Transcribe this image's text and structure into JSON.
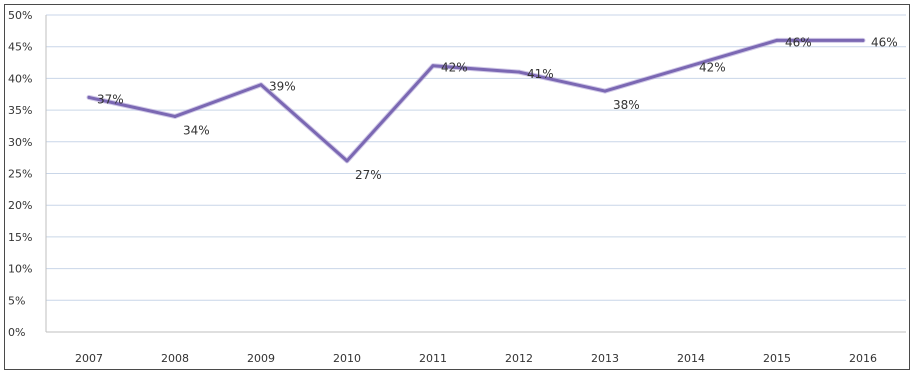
{
  "chart_data": {
    "type": "line",
    "categories": [
      "2007",
      "2008",
      "2009",
      "2010",
      "2011",
      "2012",
      "2013",
      "2014",
      "2015",
      "2016"
    ],
    "series": [
      {
        "values": [
          37,
          34,
          39,
          27,
          42,
          41,
          38,
          42,
          46,
          46
        ],
        "data_labels": [
          "37%",
          "34%",
          "39%",
          "27%",
          "42%",
          "41%",
          "38%",
          "42%",
          "46%",
          "46%"
        ],
        "color": "#7b68b3"
      }
    ],
    "y_ticks": [
      "0%",
      "5%",
      "10%",
      "15%",
      "20%",
      "25%",
      "30%",
      "35%",
      "40%",
      "45%",
      "50%"
    ],
    "ylim": [
      0,
      50
    ],
    "grid": true,
    "gridline_color": "#c9d6e8",
    "axis_color": "#bfbfbf"
  }
}
